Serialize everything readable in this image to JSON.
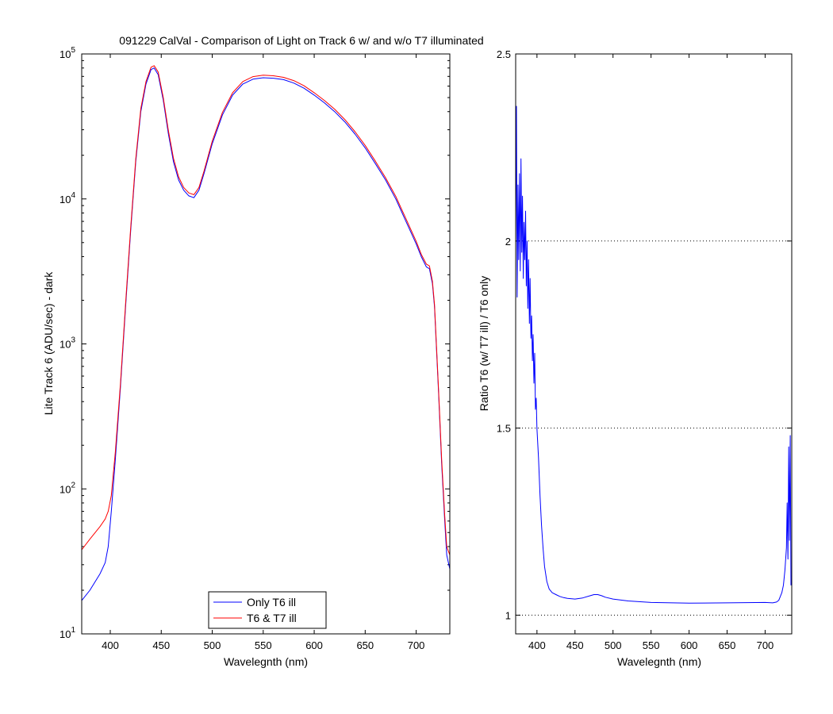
{
  "chart_data": [
    {
      "type": "line",
      "title": "091229 CalVal - Comparison of Light on Track 6 w/ and w/o T7 illuminated",
      "xlabel": "Wavelegnth (nm)",
      "ylabel": "Lite Track 6 (ADU/sec) - dark",
      "yscale": "log",
      "xlim": [
        372,
        733
      ],
      "ylim": [
        10,
        100000
      ],
      "x_ticks": [
        {
          "value": 400,
          "label": "400"
        },
        {
          "value": 450,
          "label": "450"
        },
        {
          "value": 500,
          "label": "500"
        },
        {
          "value": 550,
          "label": "550"
        },
        {
          "value": 600,
          "label": "600"
        },
        {
          "value": 650,
          "label": "650"
        },
        {
          "value": 700,
          "label": "700"
        }
      ],
      "y_ticks": [
        {
          "value": 10,
          "base": "10",
          "exp": "1"
        },
        {
          "value": 100,
          "base": "10",
          "exp": "2"
        },
        {
          "value": 1000,
          "base": "10",
          "exp": "3"
        },
        {
          "value": 10000,
          "base": "10",
          "exp": "4"
        },
        {
          "value": 100000,
          "base": "10",
          "exp": "5"
        }
      ],
      "grid": false,
      "legend_position": "bottom-center",
      "series": [
        {
          "name": "Only T6 ill",
          "color": "#0000ff",
          "x": [
            372,
            380,
            390,
            395,
            398,
            401,
            405,
            410,
            415,
            420,
            425,
            430,
            435,
            440,
            443,
            447,
            452,
            457,
            462,
            467,
            472,
            477,
            482,
            487,
            492,
            500,
            510,
            520,
            530,
            540,
            550,
            560,
            570,
            580,
            590,
            600,
            610,
            620,
            630,
            640,
            650,
            660,
            670,
            680,
            690,
            700,
            705,
            710,
            713,
            716,
            718,
            720,
            722,
            725,
            728,
            730,
            733
          ],
          "y": [
            17,
            20,
            26,
            31,
            40,
            70,
            160,
            500,
            1800,
            6000,
            18000,
            40000,
            62000,
            78000,
            80000,
            72000,
            48000,
            28000,
            18000,
            13500,
            11500,
            10500,
            10200,
            11500,
            15000,
            24000,
            38000,
            52000,
            62000,
            67000,
            68500,
            68000,
            66500,
            63000,
            58000,
            52000,
            46000,
            40000,
            34000,
            28000,
            22500,
            17500,
            13500,
            10000,
            7000,
            4900,
            4000,
            3400,
            3300,
            2600,
            1800,
            900,
            450,
            150,
            60,
            35,
            28
          ]
        },
        {
          "name": "T6 & T7 ill",
          "color": "#ff0000",
          "x": [
            372,
            380,
            390,
            395,
            398,
            401,
            405,
            410,
            415,
            420,
            425,
            430,
            435,
            440,
            443,
            447,
            452,
            457,
            462,
            467,
            472,
            477,
            482,
            487,
            492,
            500,
            510,
            520,
            530,
            540,
            550,
            560,
            570,
            580,
            590,
            600,
            610,
            620,
            630,
            640,
            650,
            660,
            670,
            680,
            690,
            700,
            705,
            710,
            713,
            716,
            718,
            720,
            722,
            725,
            728,
            730,
            733
          ],
          "y": [
            38,
            45,
            55,
            62,
            70,
            90,
            180,
            530,
            1900,
            6300,
            18800,
            42000,
            64500,
            81000,
            83000,
            75000,
            50000,
            29500,
            19000,
            14200,
            12000,
            11000,
            10700,
            12000,
            15600,
            25000,
            39500,
            54000,
            64500,
            69700,
            71300,
            70700,
            69000,
            65500,
            60300,
            54000,
            47800,
            41600,
            35300,
            29100,
            23400,
            18200,
            14000,
            10400,
            7300,
            5100,
            4150,
            3550,
            3450,
            2700,
            1870,
            940,
            470,
            160,
            65,
            40,
            35
          ]
        }
      ]
    },
    {
      "type": "line",
      "title": "",
      "xlabel": "Wavelegnth (nm)",
      "ylabel": "Ratio T6 (w/ T7 ill) / T6 only",
      "xlim": [
        372,
        735
      ],
      "ylim": [
        0.95,
        2.5
      ],
      "x_ticks": [
        {
          "value": 400,
          "label": "400"
        },
        {
          "value": 450,
          "label": "450"
        },
        {
          "value": 500,
          "label": "500"
        },
        {
          "value": 550,
          "label": "550"
        },
        {
          "value": 600,
          "label": "600"
        },
        {
          "value": 650,
          "label": "650"
        },
        {
          "value": 700,
          "label": "700"
        }
      ],
      "y_ticks": [
        {
          "value": 1,
          "label": "1"
        },
        {
          "value": 1.5,
          "label": "1.5"
        },
        {
          "value": 2,
          "label": "2"
        },
        {
          "value": 2.5,
          "label": "2.5"
        }
      ],
      "grid": "horizontal dotted",
      "series": [
        {
          "name": "",
          "color": "#0000ff",
          "x": [
            372,
            373,
            374,
            375,
            376,
            377,
            378,
            379,
            380,
            381,
            382,
            383,
            384,
            385,
            386,
            387,
            388,
            389,
            390,
            391,
            392,
            393,
            394,
            395,
            396,
            397,
            398,
            399,
            400,
            402,
            404,
            406,
            408,
            410,
            413,
            416,
            420,
            425,
            430,
            435,
            440,
            450,
            460,
            470,
            475,
            480,
            485,
            490,
            500,
            520,
            550,
            600,
            650,
            700,
            710,
            715,
            718,
            720,
            722,
            724,
            726,
            728,
            729,
            730,
            731,
            732,
            733,
            734
          ],
          "y": [
            2.0,
            2.36,
            1.85,
            2.15,
            1.95,
            2.18,
            1.92,
            2.22,
            1.97,
            2.12,
            1.9,
            2.05,
            1.95,
            2.08,
            1.88,
            2.0,
            1.82,
            1.95,
            1.78,
            1.9,
            1.74,
            1.8,
            1.68,
            1.75,
            1.62,
            1.7,
            1.55,
            1.58,
            1.5,
            1.42,
            1.32,
            1.24,
            1.18,
            1.13,
            1.09,
            1.07,
            1.06,
            1.055,
            1.05,
            1.047,
            1.045,
            1.043,
            1.046,
            1.052,
            1.055,
            1.055,
            1.052,
            1.048,
            1.043,
            1.038,
            1.034,
            1.032,
            1.033,
            1.034,
            1.033,
            1.035,
            1.04,
            1.05,
            1.06,
            1.08,
            1.12,
            1.18,
            1.3,
            1.15,
            1.45,
            1.2,
            1.48,
            1.08
          ]
        }
      ]
    }
  ]
}
